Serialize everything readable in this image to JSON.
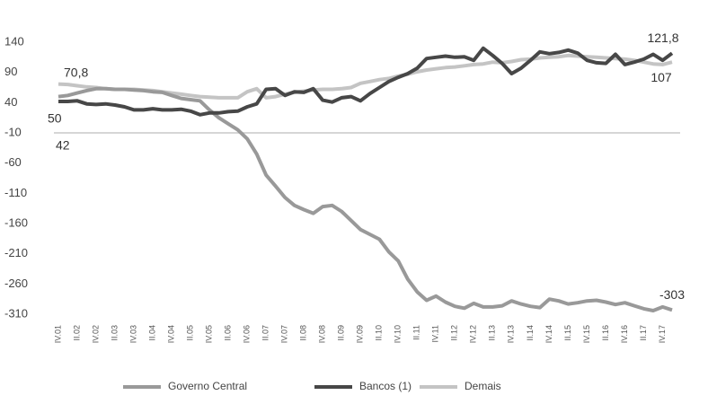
{
  "chart_data": {
    "type": "line",
    "categories": [
      "IV.01",
      null,
      "II.02",
      null,
      "IV.02",
      null,
      "II.03",
      null,
      "IV.03",
      null,
      "II.04",
      null,
      "IV.04",
      null,
      "II.05",
      null,
      "IV.05",
      null,
      "II.06",
      null,
      "IV.06",
      null,
      "II.07",
      null,
      "IV.07",
      null,
      "II.08",
      null,
      "IV.08",
      null,
      "II.09",
      null,
      "IV.09",
      null,
      "II.10",
      null,
      "IV.10",
      null,
      "II.11",
      null,
      "IV.11",
      null,
      "II.12",
      null,
      "IV.12",
      null,
      "II.13",
      null,
      "IV.13",
      null,
      "II.14",
      null,
      "IV.14",
      null,
      "II.15",
      null,
      "IV.15",
      null,
      "II.16",
      null,
      "IV.16",
      null,
      "II.17",
      null,
      "IV.17",
      null
    ],
    "series": [
      {
        "name": "Governo Central",
        "color": "#999999",
        "values": [
          50,
          52,
          56,
          60,
          63,
          63,
          62,
          62,
          61,
          60,
          58,
          57,
          52,
          47,
          45,
          43,
          28,
          15,
          5,
          -5,
          -20,
          -45,
          -80,
          -98,
          -117,
          -130,
          -137,
          -143,
          -132,
          -130,
          -140,
          -155,
          -170,
          -178,
          -186,
          -207,
          -222,
          -252,
          -273,
          -287,
          -280,
          -290,
          -297,
          -300,
          -292,
          -298,
          -298,
          -296,
          -288,
          -293,
          -297,
          -299,
          -285,
          -288,
          -293,
          -291,
          -288,
          -287,
          -290,
          -294,
          -291,
          -296,
          -301,
          -304,
          -298,
          -303
        ],
        "value_labels": [
          "50",
          null,
          null,
          null,
          null,
          null,
          null,
          null,
          null,
          null,
          null,
          null,
          null,
          null,
          null,
          null,
          null,
          null,
          null,
          null,
          null,
          null,
          null,
          null,
          null,
          null,
          null,
          null,
          null,
          null,
          null,
          null,
          null,
          null,
          null,
          null,
          null,
          null,
          null,
          null,
          null,
          null,
          null,
          null,
          null,
          null,
          null,
          null,
          null,
          null,
          null,
          null,
          null,
          null,
          null,
          null,
          null,
          null,
          null,
          null,
          null,
          null,
          null,
          null,
          null,
          "-303"
        ]
      },
      {
        "name": "Bancos (1)",
        "color": "#474747",
        "values": [
          42,
          42,
          43,
          38,
          37,
          38,
          36,
          33,
          28,
          28,
          30,
          28,
          28,
          29,
          26,
          20,
          23,
          23,
          25,
          26,
          33,
          38,
          62,
          63,
          52,
          58,
          57,
          63,
          44,
          41,
          48,
          50,
          43,
          55,
          65,
          75,
          82,
          88,
          97,
          113,
          115,
          117,
          115,
          116,
          110,
          130,
          118,
          105,
          88,
          97,
          110,
          124,
          121,
          123,
          127,
          122,
          110,
          106,
          105,
          120,
          103,
          107,
          112,
          120,
          110,
          121.8
        ],
        "value_labels": [
          "42",
          null,
          null,
          null,
          null,
          null,
          null,
          null,
          null,
          null,
          null,
          null,
          null,
          null,
          null,
          null,
          null,
          null,
          null,
          null,
          null,
          null,
          null,
          null,
          null,
          null,
          null,
          null,
          null,
          null,
          null,
          null,
          null,
          null,
          null,
          null,
          null,
          null,
          null,
          null,
          null,
          null,
          null,
          null,
          null,
          null,
          null,
          null,
          null,
          null,
          null,
          null,
          null,
          null,
          null,
          null,
          null,
          null,
          null,
          null,
          null,
          null,
          null,
          null,
          null,
          "121,8"
        ]
      },
      {
        "name": "Demais",
        "color": "#c4c4c4",
        "values": [
          70.8,
          70,
          68,
          66,
          65,
          63,
          62,
          62,
          62,
          61,
          60,
          58,
          56,
          54,
          52,
          50,
          49,
          48,
          48,
          48,
          58,
          63,
          48,
          50,
          54,
          57,
          59,
          61,
          62,
          62,
          63,
          65,
          72,
          75,
          78,
          80,
          84,
          87,
          91,
          94,
          96,
          98,
          99,
          101,
          103,
          104,
          107,
          106,
          108,
          111,
          112,
          114,
          115,
          116,
          118,
          117,
          116,
          115,
          114,
          113,
          112,
          110,
          107,
          104,
          103,
          107
        ],
        "value_labels": [
          "70,8",
          null,
          null,
          null,
          null,
          null,
          null,
          null,
          null,
          null,
          null,
          null,
          null,
          null,
          null,
          null,
          null,
          null,
          null,
          null,
          null,
          null,
          null,
          null,
          null,
          null,
          null,
          null,
          null,
          null,
          null,
          null,
          null,
          null,
          null,
          null,
          null,
          null,
          null,
          null,
          null,
          null,
          null,
          null,
          null,
          null,
          null,
          null,
          null,
          null,
          null,
          null,
          null,
          null,
          null,
          null,
          null,
          null,
          null,
          null,
          null,
          null,
          null,
          null,
          null,
          "107"
        ]
      }
    ],
    "ylim": [
      -310,
      140
    ],
    "yticks": [
      140,
      90,
      40,
      -10,
      -60,
      -110,
      -160,
      -210,
      -260,
      -310
    ],
    "x_axis_at": -10,
    "grid": false,
    "legend": "bottom"
  }
}
